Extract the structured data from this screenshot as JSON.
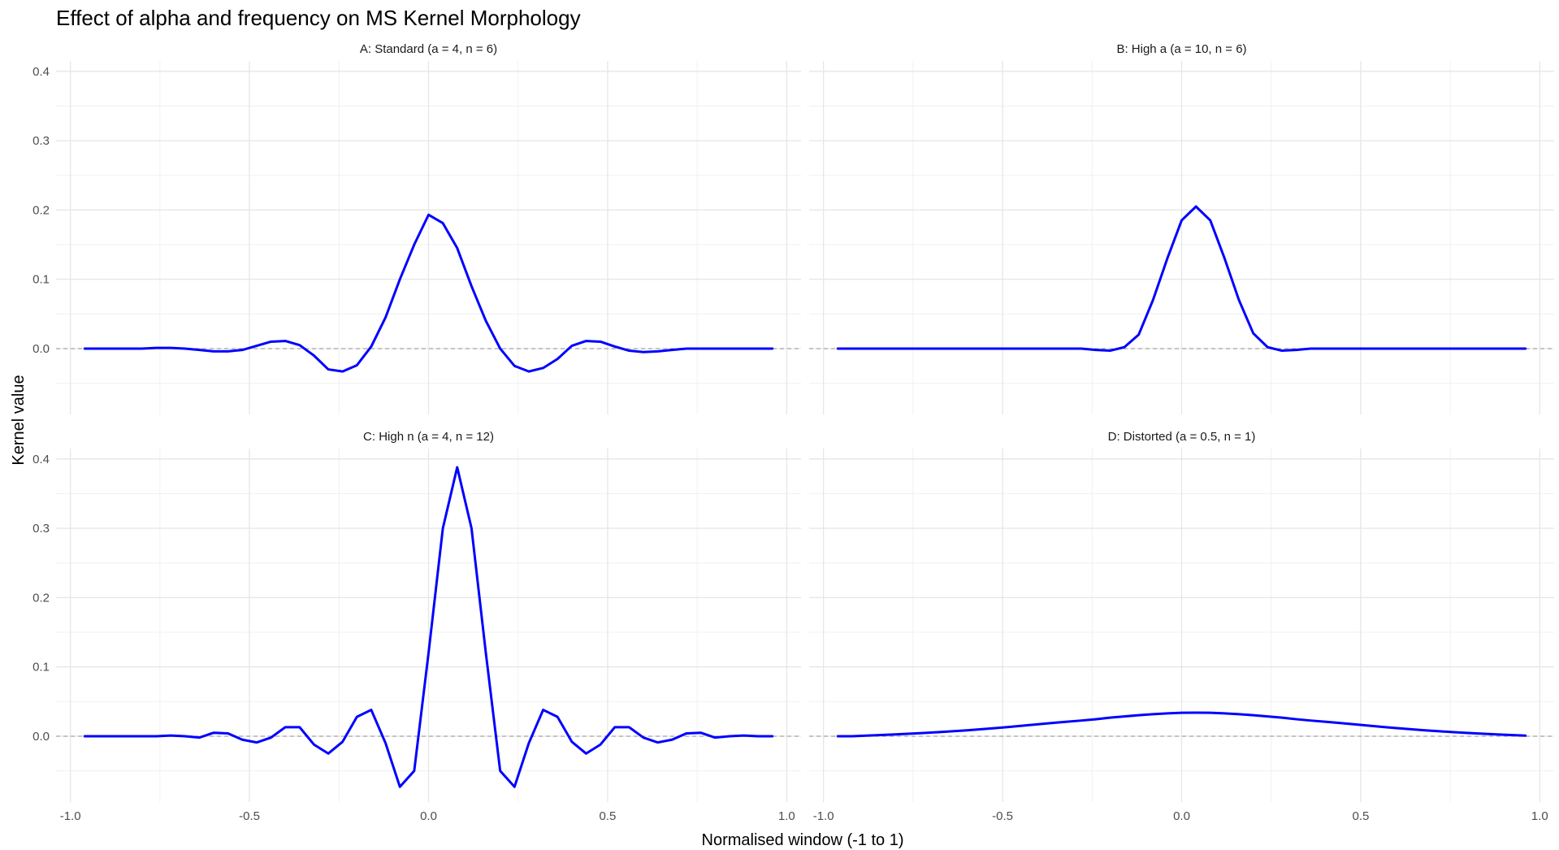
{
  "chart_data": {
    "type": "line",
    "title": "Effect of alpha and frequency on MS Kernel Morphology",
    "xlabel": "Normalised window (-1 to 1)",
    "ylabel": "Kernel value",
    "xlim": [
      -1.04,
      1.04
    ],
    "ylim": [
      -0.095,
      0.415
    ],
    "x_ticks": [
      -1.0,
      -0.5,
      0.0,
      0.5,
      1.0
    ],
    "x_tick_labels": [
      "-1.0",
      "-0.5",
      "0.0",
      "0.5",
      "1.0"
    ],
    "y_ticks": [
      0.0,
      0.1,
      0.2,
      0.3,
      0.4
    ],
    "y_tick_labels": [
      "0.0",
      "0.1",
      "0.2",
      "0.3",
      "0.4"
    ],
    "reference_line_y": 0,
    "line_color": "#0000ff",
    "reference_line_color": "#a6a6a6",
    "grid": true,
    "legend": "none",
    "x": [
      -0.96,
      -0.92,
      -0.88,
      -0.84,
      -0.8,
      -0.76,
      -0.72,
      -0.68,
      -0.64,
      -0.6,
      -0.56,
      -0.52,
      -0.48,
      -0.44,
      -0.4,
      -0.36,
      -0.32,
      -0.28,
      -0.24,
      -0.2,
      -0.16,
      -0.12,
      -0.08,
      -0.04,
      0.0,
      0.04,
      0.08,
      0.12,
      0.16,
      0.2,
      0.24,
      0.28,
      0.32,
      0.36,
      0.4,
      0.44,
      0.48,
      0.52,
      0.56,
      0.6,
      0.64,
      0.68,
      0.72,
      0.76,
      0.8,
      0.84,
      0.88,
      0.92,
      0.96
    ],
    "panels": [
      {
        "label": "A: Standard (a = 4, n = 6)",
        "values": [
          0.0,
          0.0,
          0.0,
          0.0,
          0.0,
          0.001,
          0.001,
          0.0,
          -0.002,
          -0.004,
          -0.004,
          -0.002,
          0.004,
          0.01,
          0.011,
          0.005,
          -0.01,
          -0.03,
          -0.033,
          -0.024,
          0.003,
          0.045,
          0.1,
          0.15,
          0.193,
          0.181,
          0.145,
          0.09,
          0.04,
          0.0,
          -0.025,
          -0.033,
          -0.028,
          -0.015,
          0.004,
          0.011,
          0.01,
          0.003,
          -0.003,
          -0.005,
          -0.004,
          -0.002,
          0.0,
          0.0,
          0.0,
          0.0,
          0.0,
          0.0,
          0.0
        ]
      },
      {
        "label": "B: High a (a = 10, n = 6)",
        "values": [
          0.0,
          0.0,
          0.0,
          0.0,
          0.0,
          0.0,
          0.0,
          0.0,
          0.0,
          0.0,
          0.0,
          0.0,
          0.0,
          0.0,
          0.0,
          0.0,
          0.0,
          0.0,
          -0.002,
          -0.003,
          0.002,
          0.02,
          0.07,
          0.13,
          0.185,
          0.205,
          0.185,
          0.13,
          0.07,
          0.022,
          0.002,
          -0.003,
          -0.002,
          0.0,
          0.0,
          0.0,
          0.0,
          0.0,
          0.0,
          0.0,
          0.0,
          0.0,
          0.0,
          0.0,
          0.0,
          0.0,
          0.0,
          0.0,
          0.0
        ]
      },
      {
        "label": "C: High n (a = 4, n = 12)",
        "values": [
          0.0,
          0.0,
          0.0,
          0.0,
          0.0,
          0.0,
          0.001,
          0.0,
          -0.002,
          0.005,
          0.004,
          -0.005,
          -0.009,
          -0.002,
          0.013,
          0.013,
          -0.012,
          -0.025,
          -0.008,
          0.028,
          0.038,
          -0.01,
          -0.073,
          -0.05,
          0.12,
          0.3,
          0.388,
          0.3,
          0.12,
          -0.05,
          -0.073,
          -0.01,
          0.038,
          0.028,
          -0.008,
          -0.025,
          -0.012,
          0.013,
          0.013,
          -0.002,
          -0.009,
          -0.005,
          0.004,
          0.005,
          -0.002,
          0.0,
          0.001,
          0.0,
          0.0
        ]
      },
      {
        "label": "D: Distorted (a = 0.5, n = 1)",
        "values": [
          0.0,
          0.0,
          0.0009,
          0.0018,
          0.0026,
          0.0036,
          0.0047,
          0.0058,
          0.0071,
          0.0085,
          0.0101,
          0.0117,
          0.0135,
          0.0154,
          0.0172,
          0.0191,
          0.0209,
          0.0226,
          0.0245,
          0.0268,
          0.0285,
          0.0303,
          0.0318,
          0.0329,
          0.0338,
          0.034,
          0.0338,
          0.0329,
          0.0318,
          0.0303,
          0.0285,
          0.0268,
          0.0245,
          0.0226,
          0.0209,
          0.0191,
          0.0172,
          0.0154,
          0.0135,
          0.0117,
          0.0101,
          0.0085,
          0.0071,
          0.0058,
          0.0047,
          0.0036,
          0.0026,
          0.0018,
          0.0009
        ]
      }
    ]
  }
}
